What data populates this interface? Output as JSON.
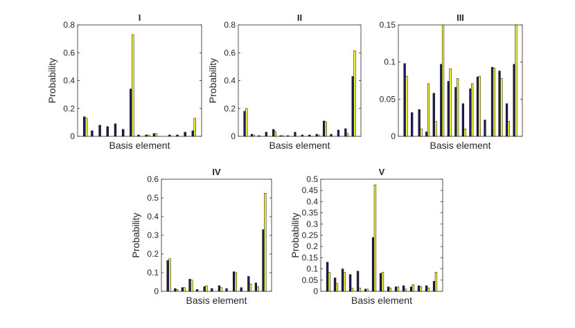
{
  "chart_data": [
    {
      "type": "bar",
      "title": "I",
      "xlabel": "Basis element",
      "ylabel": "Probability",
      "ylim": [
        0,
        0.8
      ],
      "yticks": [
        0,
        0.2,
        0.4,
        0.6,
        0.8
      ],
      "ytick_labels": [
        "0",
        "0.2",
        "0.4",
        "0.6",
        "0.8"
      ],
      "grid": false,
      "colors": [
        "#1f1f5e",
        "#f0f03a"
      ],
      "series": [
        {
          "values": [
            0.14,
            0.04,
            0.08,
            0.07,
            0.09,
            0.05,
            0.34,
            0.01,
            0.01,
            0.02,
            0.0,
            0.01,
            0.01,
            0.03,
            0.04
          ]
        },
        {
          "values": [
            0.13,
            0.0,
            0.0,
            0.0,
            0.0,
            0.0,
            0.73,
            0.0,
            0.01,
            0.02,
            0.0,
            0.0,
            0.0,
            0.0,
            0.13
          ]
        }
      ]
    },
    {
      "type": "bar",
      "title": "II",
      "xlabel": "Basis element",
      "ylabel": "Probability",
      "ylim": [
        0,
        0.8
      ],
      "yticks": [
        0,
        0.2,
        0.4,
        0.6,
        0.8
      ],
      "ytick_labels": [
        "0",
        "0.2",
        "0.4",
        "0.6",
        "0.8"
      ],
      "grid": false,
      "colors": [
        "#1f1f5e",
        "#f0f03a"
      ],
      "series": [
        {
          "values": [
            0.18,
            0.015,
            0.005,
            0.03,
            0.05,
            0.005,
            0.005,
            0.03,
            0.01,
            0.01,
            0.015,
            0.11,
            0.015,
            0.045,
            0.055,
            0.43
          ]
        },
        {
          "values": [
            0.2,
            0.01,
            0.0,
            0.0,
            0.035,
            0.005,
            0.0,
            0.0,
            0.0,
            0.0,
            0.01,
            0.105,
            0.0,
            0.0,
            0.02,
            0.615
          ]
        }
      ]
    },
    {
      "type": "bar",
      "title": "III",
      "xlabel": "Basis element",
      "ylabel": "",
      "ylim": [
        0,
        0.15
      ],
      "yticks": [
        0,
        0.05,
        0.1,
        0.15
      ],
      "ytick_labels": [
        "0",
        "0.05",
        "0.1",
        "0.15"
      ],
      "grid": false,
      "colors": [
        "#1f1f5e",
        "#f0f03a"
      ],
      "series": [
        {
          "values": [
            0.098,
            0.032,
            0.036,
            0.006,
            0.058,
            0.097,
            0.074,
            0.066,
            0.044,
            0.064,
            0.08,
            0.022,
            0.093,
            0.088,
            0.044,
            0.097
          ]
        },
        {
          "values": [
            0.081,
            0.0,
            0.01,
            0.071,
            0.02,
            0.15,
            0.091,
            0.078,
            0.01,
            0.071,
            0.081,
            0.0,
            0.092,
            0.078,
            0.02,
            0.15
          ]
        }
      ]
    },
    {
      "type": "bar",
      "title": "IV",
      "xlabel": "Basis element",
      "ylabel": "Probability",
      "ylim": [
        0,
        0.6
      ],
      "yticks": [
        0,
        0.1,
        0.2,
        0.3,
        0.4,
        0.5,
        0.6
      ],
      "ytick_labels": [
        "0",
        "0.1",
        "0.2",
        "0.3",
        "0.4",
        "0.5",
        "0.6"
      ],
      "grid": false,
      "colors": [
        "#1f1f5e",
        "#f0f03a"
      ],
      "series": [
        {
          "values": [
            0.165,
            0.015,
            0.02,
            0.065,
            0.01,
            0.025,
            0.015,
            0.03,
            0.015,
            0.105,
            0.02,
            0.08,
            0.045,
            0.33
          ]
        },
        {
          "values": [
            0.175,
            0.01,
            0.02,
            0.06,
            0.0,
            0.03,
            0.0,
            0.02,
            0.0,
            0.1,
            0.0,
            0.04,
            0.025,
            0.525
          ]
        }
      ]
    },
    {
      "type": "bar",
      "title": "V",
      "xlabel": "Basis element",
      "ylabel": "Probability",
      "ylim": [
        0,
        0.5
      ],
      "yticks": [
        0,
        0.05,
        0.1,
        0.15,
        0.2,
        0.25,
        0.3,
        0.35,
        0.4,
        0.45,
        0.5
      ],
      "ytick_labels": [
        "0",
        "0.05",
        "0.1",
        "0.15",
        "0.2",
        "0.25",
        "0.3",
        "0.35",
        "0.4",
        "0.45",
        "0.5"
      ],
      "grid": false,
      "colors": [
        "#1f1f5e",
        "#f0f03a"
      ],
      "series": [
        {
          "values": [
            0.13,
            0.06,
            0.1,
            0.075,
            0.09,
            0.01,
            0.24,
            0.08,
            0.02,
            0.02,
            0.025,
            0.02,
            0.025,
            0.025,
            0.045
          ]
        },
        {
          "values": [
            0.085,
            0.035,
            0.085,
            0.015,
            0.015,
            0.01,
            0.475,
            0.085,
            0.015,
            0.02,
            0.01,
            0.03,
            0.02,
            0.015,
            0.085
          ]
        }
      ]
    }
  ]
}
